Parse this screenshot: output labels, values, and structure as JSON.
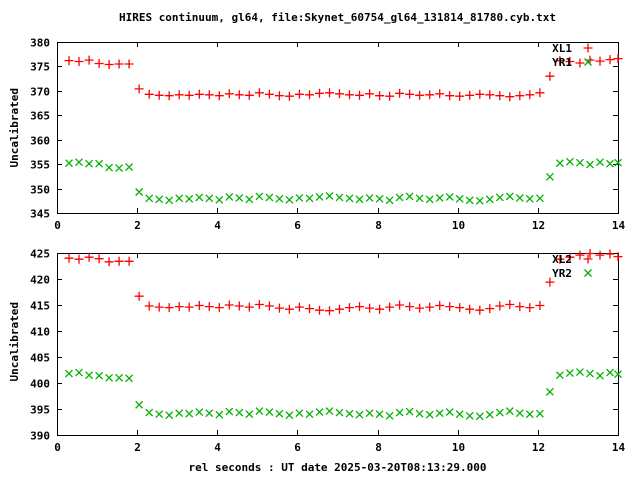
{
  "title": "HIRES continuum, gl64, file:Skynet_60754_gl64_131814_81780.cyb.txt",
  "xlabel": "rel seconds : UT date 2025-03-20T08:13:29.000",
  "colors": {
    "series_red": "#ff0000",
    "series_green": "#00b000",
    "axis": "#000000",
    "background": "#ffffff"
  },
  "chart_data": [
    {
      "type": "scatter",
      "panel": "top",
      "ylabel": "Uncalibrated",
      "xlim": [
        0,
        14
      ],
      "ylim": [
        345,
        380
      ],
      "xticks": [
        0,
        2,
        4,
        6,
        8,
        10,
        12,
        14
      ],
      "yticks": [
        345,
        350,
        355,
        360,
        365,
        370,
        375,
        380
      ],
      "grid": false,
      "legend_position": "top-right",
      "x": [
        0.3,
        0.55,
        0.8,
        1.05,
        1.3,
        1.55,
        1.8,
        2.05,
        2.3,
        2.55,
        2.8,
        3.05,
        3.3,
        3.55,
        3.8,
        4.05,
        4.3,
        4.55,
        4.8,
        5.05,
        5.3,
        5.55,
        5.8,
        6.05,
        6.3,
        6.55,
        6.8,
        7.05,
        7.3,
        7.55,
        7.8,
        8.05,
        8.3,
        8.55,
        8.8,
        9.05,
        9.3,
        9.55,
        9.8,
        10.05,
        10.3,
        10.55,
        10.8,
        11.05,
        11.3,
        11.55,
        11.8,
        12.05,
        12.3,
        12.55,
        12.8,
        13.05,
        13.3,
        13.55,
        13.8,
        14.0
      ],
      "series": [
        {
          "name": "XL1",
          "marker": "plus",
          "color": "#ff0000",
          "values": [
            376.2,
            376.0,
            376.3,
            375.6,
            375.4,
            375.5,
            375.5,
            370.4,
            369.3,
            369.1,
            369.0,
            369.2,
            369.1,
            369.3,
            369.2,
            369.0,
            369.4,
            369.2,
            369.1,
            369.6,
            369.3,
            369.0,
            368.9,
            369.3,
            369.2,
            369.5,
            369.6,
            369.4,
            369.2,
            369.1,
            369.4,
            369.0,
            368.9,
            369.5,
            369.3,
            369.1,
            369.2,
            369.4,
            369.0,
            368.9,
            369.1,
            369.3,
            369.2,
            369.0,
            368.8,
            369.0,
            369.2,
            369.6,
            373.0,
            376.2,
            376.0,
            375.7,
            376.3,
            376.1,
            376.4,
            376.6
          ]
        },
        {
          "name": "YR1",
          "marker": "cross",
          "color": "#00b000",
          "values": [
            355.2,
            355.4,
            355.1,
            355.1,
            354.3,
            354.2,
            354.4,
            349.3,
            348.0,
            347.8,
            347.6,
            348.0,
            347.9,
            348.2,
            348.0,
            347.7,
            348.3,
            348.1,
            347.8,
            348.4,
            348.2,
            347.9,
            347.7,
            348.1,
            348.0,
            348.3,
            348.5,
            348.2,
            348.0,
            347.8,
            348.1,
            347.9,
            347.6,
            348.2,
            348.4,
            348.0,
            347.8,
            348.1,
            348.3,
            347.9,
            347.6,
            347.5,
            347.8,
            348.2,
            348.4,
            348.1,
            347.9,
            348.0,
            352.4,
            355.2,
            355.5,
            355.3,
            354.9,
            355.4,
            355.1,
            355.3
          ]
        }
      ]
    },
    {
      "type": "scatter",
      "panel": "bottom",
      "ylabel": "Uncalibrated",
      "xlim": [
        0,
        14
      ],
      "ylim": [
        390,
        425
      ],
      "xticks": [
        0,
        2,
        4,
        6,
        8,
        10,
        12,
        14
      ],
      "yticks": [
        390,
        395,
        400,
        405,
        410,
        415,
        420,
        425
      ],
      "grid": false,
      "legend_position": "top-right",
      "x": [
        0.3,
        0.55,
        0.8,
        1.05,
        1.3,
        1.55,
        1.8,
        2.05,
        2.3,
        2.55,
        2.8,
        3.05,
        3.3,
        3.55,
        3.8,
        4.05,
        4.3,
        4.55,
        4.8,
        5.05,
        5.3,
        5.55,
        5.8,
        6.05,
        6.3,
        6.55,
        6.8,
        7.05,
        7.3,
        7.55,
        7.8,
        8.05,
        8.3,
        8.55,
        8.8,
        9.05,
        9.3,
        9.55,
        9.8,
        10.05,
        10.3,
        10.55,
        10.8,
        11.05,
        11.3,
        11.55,
        11.8,
        12.05,
        12.3,
        12.55,
        12.8,
        13.05,
        13.3,
        13.55,
        13.8,
        14.0
      ],
      "series": [
        {
          "name": "XL2",
          "marker": "plus",
          "color": "#ff0000",
          "values": [
            424.0,
            423.8,
            424.2,
            423.9,
            423.3,
            423.4,
            423.4,
            416.7,
            414.8,
            414.6,
            414.5,
            414.7,
            414.6,
            414.9,
            414.7,
            414.5,
            415.0,
            414.8,
            414.6,
            415.1,
            414.8,
            414.4,
            414.2,
            414.6,
            414.3,
            414.0,
            413.9,
            414.2,
            414.5,
            414.7,
            414.4,
            414.2,
            414.6,
            415.0,
            414.7,
            414.4,
            414.6,
            414.9,
            414.7,
            414.5,
            414.2,
            414.0,
            414.3,
            414.8,
            415.1,
            414.7,
            414.5,
            414.9,
            419.4,
            423.8,
            424.2,
            424.6,
            424.9,
            424.6,
            424.8,
            424.3
          ]
        },
        {
          "name": "YR2",
          "marker": "cross",
          "color": "#00b000",
          "values": [
            401.8,
            402.0,
            401.5,
            401.4,
            401.0,
            401.0,
            400.9,
            395.8,
            394.3,
            394.0,
            393.8,
            394.2,
            394.1,
            394.4,
            394.2,
            393.9,
            394.5,
            394.3,
            394.0,
            394.6,
            394.4,
            394.1,
            393.8,
            394.2,
            394.0,
            394.4,
            394.6,
            394.3,
            394.1,
            393.9,
            394.2,
            394.0,
            393.7,
            394.3,
            394.5,
            394.1,
            393.9,
            394.2,
            394.4,
            394.0,
            393.7,
            393.6,
            393.9,
            394.3,
            394.6,
            394.2,
            394.0,
            394.1,
            398.3,
            401.5,
            401.9,
            402.1,
            401.8,
            401.4,
            402.0,
            401.7
          ]
        }
      ]
    }
  ]
}
